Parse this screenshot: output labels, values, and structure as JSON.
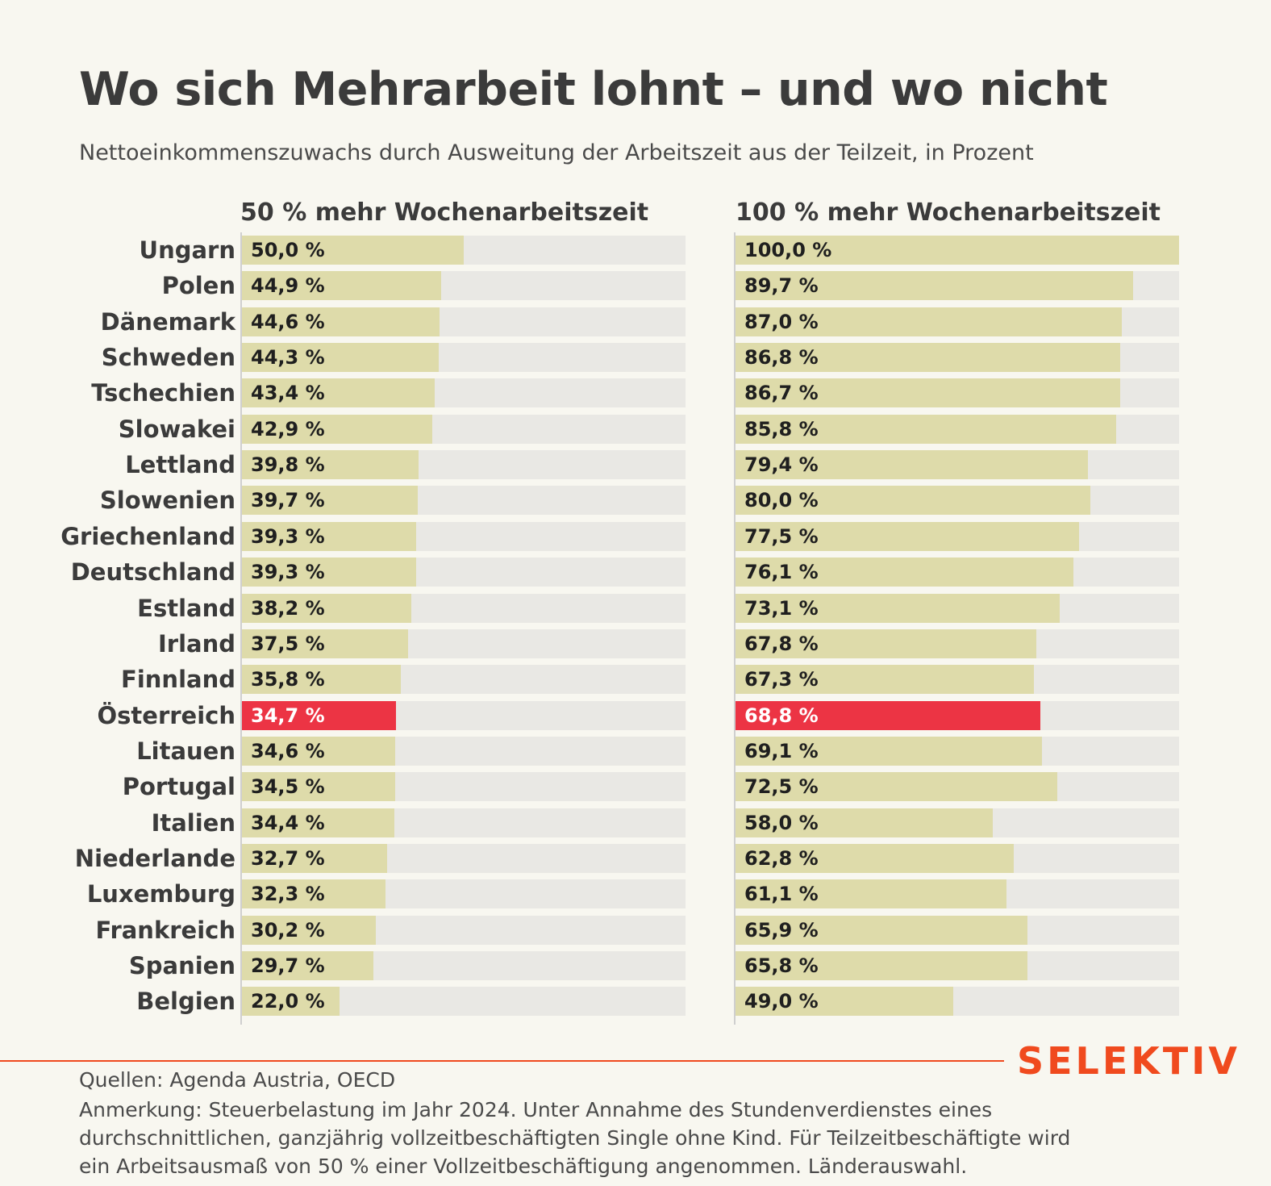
{
  "title": "Wo sich Mehrarbeit lohnt – und wo nicht",
  "subtitle": "Nettoeinkommenszuwachs durch Ausweitung der Arbeitszeit aus der Teilzeit, in Prozent",
  "brand": "SELEKTIV",
  "sources": "Quellen: Agenda Austria, OECD",
  "note": "Anmerkung: Steuerbelastung im Jahr 2024. Unter Annahme des Stundenverdienstes eines durchschnittlichen, ganzjährig vollzeitbeschäftigten Single ohne Kind. Für Teilzeitbeschäftigte wird ein Arbeitsausmaß von 50 % einer Vollzeitbeschäftigung angenommen. Länderauswahl.",
  "colors": {
    "bar": "#dedbaa",
    "highlight": "#ec3444",
    "track": "#e9e8e4",
    "brand": "#f04a1e",
    "background": "#f8f7f0"
  },
  "chart_data": [
    {
      "type": "bar",
      "orientation": "horizontal",
      "title": "50 % mehr Wochenarbeitszeit",
      "xlim": [
        0,
        100
      ],
      "highlight": "Österreich",
      "categories": [
        "Ungarn",
        "Polen",
        "Dänemark",
        "Schweden",
        "Tschechien",
        "Slowakei",
        "Lettland",
        "Slowenien",
        "Griechenland",
        "Deutschland",
        "Estland",
        "Irland",
        "Finnland",
        "Österreich",
        "Litauen",
        "Portugal",
        "Italien",
        "Niederlande",
        "Luxemburg",
        "Frankreich",
        "Spanien",
        "Belgien"
      ],
      "values": [
        50.0,
        44.9,
        44.6,
        44.3,
        43.4,
        42.9,
        39.8,
        39.7,
        39.3,
        39.3,
        38.2,
        37.5,
        35.8,
        34.7,
        34.6,
        34.5,
        34.4,
        32.7,
        32.3,
        30.2,
        29.7,
        22.0
      ],
      "labels": [
        "50,0 %",
        "44,9 %",
        "44,6 %",
        "44,3 %",
        "43,4 %",
        "42,9 %",
        "39,8 %",
        "39,7 %",
        "39,3 %",
        "39,3 %",
        "38,2 %",
        "37,5 %",
        "35,8 %",
        "34,7 %",
        "34,6 %",
        "34,5 %",
        "34,4 %",
        "32,7 %",
        "32,3 %",
        "30,2 %",
        "29,7 %",
        "22,0 %"
      ]
    },
    {
      "type": "bar",
      "orientation": "horizontal",
      "title": "100 % mehr Wochenarbeitszeit",
      "xlim": [
        0,
        100
      ],
      "highlight": "Österreich",
      "categories": [
        "Ungarn",
        "Polen",
        "Dänemark",
        "Schweden",
        "Tschechien",
        "Slowakei",
        "Lettland",
        "Slowenien",
        "Griechenland",
        "Deutschland",
        "Estland",
        "Irland",
        "Finnland",
        "Österreich",
        "Litauen",
        "Portugal",
        "Italien",
        "Niederlande",
        "Luxemburg",
        "Frankreich",
        "Spanien",
        "Belgien"
      ],
      "values": [
        100.0,
        89.7,
        87.0,
        86.8,
        86.7,
        85.8,
        79.4,
        80.0,
        77.5,
        76.1,
        73.1,
        67.8,
        67.3,
        68.8,
        69.1,
        72.5,
        58.0,
        62.8,
        61.1,
        65.9,
        65.8,
        49.0
      ],
      "labels": [
        "100,0 %",
        "89,7 %",
        "87,0 %",
        "86,8 %",
        "86,7 %",
        "85,8 %",
        "79,4 %",
        "80,0 %",
        "77,5 %",
        "76,1 %",
        "73,1 %",
        "67,8 %",
        "67,3 %",
        "68,8 %",
        "69,1 %",
        "72,5 %",
        "58,0 %",
        "62,8 %",
        "61,1 %",
        "65,9 %",
        "65,8 %",
        "49,0 %"
      ]
    }
  ]
}
